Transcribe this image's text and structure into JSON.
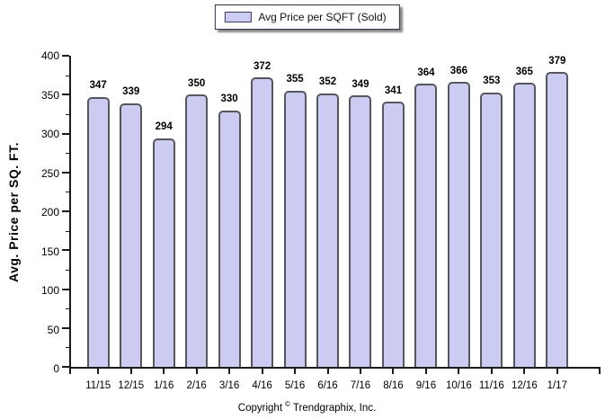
{
  "legend": {
    "label": "Avg Price per SQFT (Sold)",
    "swatch_color": "#ccccf2"
  },
  "chart_data": {
    "type": "bar",
    "title": "",
    "series_name": "Avg Price per SQFT (Sold)",
    "categories": [
      "11/15",
      "12/15",
      "1/16",
      "2/16",
      "3/16",
      "4/16",
      "5/16",
      "6/16",
      "7/16",
      "8/16",
      "9/16",
      "10/16",
      "11/16",
      "12/16",
      "1/17"
    ],
    "values": [
      347,
      339,
      294,
      350,
      330,
      372,
      355,
      352,
      349,
      341,
      364,
      366,
      353,
      365,
      379
    ],
    "xlabel": "",
    "ylabel": "Avg. Price per SQ. FT.",
    "ylim": [
      0,
      400
    ],
    "ytick_step": 50,
    "yminor_step": 25,
    "grid": false,
    "legend_position": "top",
    "bar_fill": "#ccccf2",
    "bar_border": "#56565e",
    "axis_color": "#1a1a1a"
  },
  "footer": {
    "prefix": "Copyright",
    "symbol": "©",
    "company": "Trendgraphix, Inc."
  }
}
